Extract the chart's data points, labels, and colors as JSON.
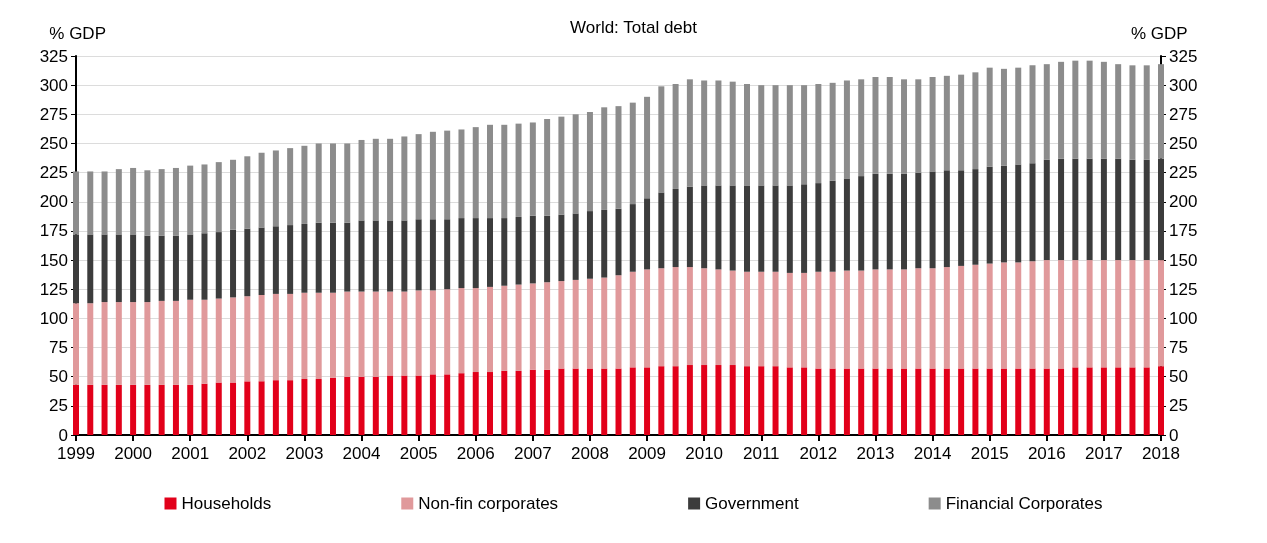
{
  "chart_data": {
    "type": "bar",
    "title": "World: Total debt",
    "ylabel": "% GDP",
    "y2label": "% GDP",
    "stacked": true,
    "categories": [
      "1999",
      null,
      null,
      null,
      "2000",
      null,
      null,
      null,
      "2001",
      null,
      null,
      null,
      "2002",
      null,
      null,
      null,
      "2003",
      null,
      null,
      null,
      "2004",
      null,
      null,
      null,
      "2005",
      null,
      null,
      null,
      "2006",
      null,
      null,
      null,
      "2007",
      null,
      null,
      null,
      "2008",
      null,
      null,
      null,
      "2009",
      null,
      null,
      null,
      "2010",
      null,
      null,
      null,
      "2011",
      null,
      null,
      null,
      "2012",
      null,
      null,
      null,
      "2013",
      null,
      null,
      null,
      "2014",
      null,
      null,
      null,
      "2015",
      null,
      null,
      null,
      "2016",
      null,
      null,
      null,
      "2017",
      null,
      null,
      null,
      "2018"
    ],
    "series": [
      {
        "name": "Households",
        "color": "#e2001a",
        "values": [
          43,
          43,
          43,
          43,
          43,
          43,
          43,
          43,
          43,
          44,
          45,
          45,
          46,
          46,
          47,
          47,
          48,
          48,
          49,
          50,
          50,
          50,
          51,
          51,
          51,
          52,
          52,
          53,
          54,
          54,
          55,
          55,
          56,
          56,
          57,
          57,
          57,
          57,
          57,
          58,
          58,
          59,
          59,
          60,
          60,
          60,
          60,
          59,
          59,
          59,
          58,
          58,
          57,
          57,
          57,
          57,
          57,
          57,
          57,
          57,
          57,
          57,
          57,
          57,
          57,
          57,
          57,
          57,
          57,
          57,
          58,
          58,
          58,
          58,
          58,
          58,
          59
        ]
      },
      {
        "name": "Non-fin corporates",
        "color": "#e0999b",
        "values": [
          70,
          70,
          71,
          71,
          71,
          71,
          72,
          72,
          73,
          72,
          72,
          73,
          73,
          74,
          74,
          74,
          74,
          74,
          73,
          73,
          73,
          73,
          72,
          72,
          73,
          72,
          73,
          73,
          72,
          73,
          73,
          74,
          74,
          75,
          75,
          76,
          77,
          78,
          80,
          82,
          84,
          84,
          85,
          84,
          83,
          82,
          81,
          81,
          81,
          81,
          81,
          81,
          83,
          83,
          84,
          84,
          85,
          85,
          85,
          86,
          86,
          87,
          88,
          89,
          90,
          91,
          91,
          92,
          93,
          93,
          92,
          92,
          92,
          92,
          92,
          92,
          91
        ]
      },
      {
        "name": "Government",
        "color": "#3c3c3c",
        "values": [
          59,
          59,
          58,
          58,
          58,
          57,
          56,
          56,
          56,
          57,
          57,
          58,
          58,
          58,
          58,
          59,
          59,
          60,
          60,
          59,
          61,
          61,
          61,
          61,
          61,
          61,
          60,
          60,
          60,
          59,
          58,
          58,
          58,
          57,
          57,
          57,
          58,
          58,
          57,
          58,
          61,
          65,
          67,
          69,
          71,
          72,
          73,
          74,
          74,
          74,
          75,
          76,
          76,
          78,
          79,
          81,
          82,
          82,
          82,
          82,
          83,
          83,
          82,
          82,
          83,
          83,
          84,
          84,
          86,
          87,
          87,
          87,
          87,
          87,
          86,
          86,
          87
        ]
      },
      {
        "name": "Financial Corporates",
        "color": "#8c8c8c",
        "values": [
          54,
          54,
          54,
          56,
          57,
          56,
          57,
          58,
          59,
          59,
          60,
          60,
          62,
          64,
          65,
          66,
          67,
          68,
          68,
          68,
          69,
          70,
          70,
          72,
          73,
          75,
          76,
          76,
          78,
          80,
          80,
          80,
          80,
          83,
          84,
          85,
          85,
          88,
          88,
          87,
          87,
          91,
          90,
          92,
          90,
          90,
          89,
          87,
          86,
          86,
          86,
          85,
          85,
          84,
          84,
          83,
          83,
          83,
          81,
          80,
          81,
          81,
          82,
          83,
          85,
          83,
          83,
          84,
          82,
          83,
          84,
          84,
          83,
          81,
          81,
          81,
          81
        ]
      }
    ],
    "ylim": [
      0,
      325
    ],
    "yticks": [
      0,
      25,
      50,
      75,
      100,
      125,
      150,
      175,
      200,
      225,
      250,
      275,
      300,
      325
    ],
    "y2lim": [
      0,
      325
    ],
    "y2ticks": [
      0,
      25,
      50,
      75,
      100,
      125,
      150,
      175,
      200,
      225,
      250,
      275,
      300,
      325
    ],
    "grid": "y",
    "legend": "bottom"
  }
}
